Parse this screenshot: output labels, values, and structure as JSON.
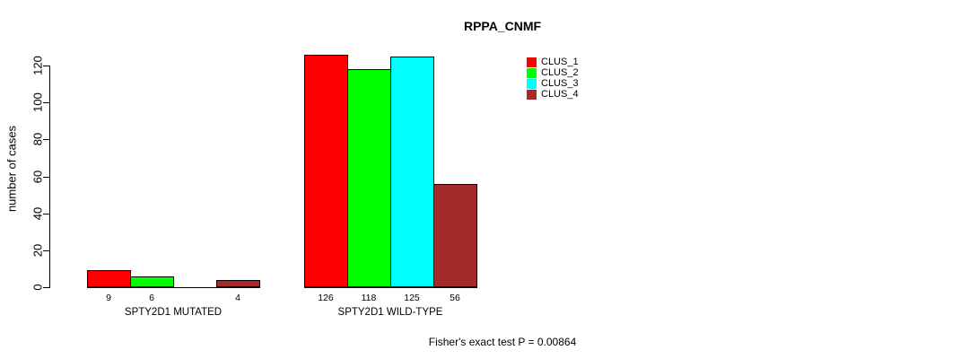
{
  "chart_data": {
    "type": "bar",
    "title": "RPPA_CNMF",
    "ylabel": "number of cases",
    "xlabel": "",
    "ylim": [
      0,
      120
    ],
    "yticks": [
      0,
      20,
      40,
      60,
      80,
      100,
      120
    ],
    "grid": false,
    "legend_position": "top-right",
    "categories": [
      "SPTY2D1 MUTATED",
      "SPTY2D1 WILD-TYPE"
    ],
    "series": [
      {
        "name": "CLUS_1",
        "color": "#ff0000",
        "values": [
          9,
          126
        ]
      },
      {
        "name": "CLUS_2",
        "color": "#00ff00",
        "values": [
          6,
          118
        ]
      },
      {
        "name": "CLUS_3",
        "color": "#00ffff",
        "values": [
          0,
          125
        ]
      },
      {
        "name": "CLUS_4",
        "color": "#a52a2a",
        "values": [
          4,
          56
        ]
      }
    ],
    "bar_value_labels": [
      [
        "9",
        "6",
        "",
        "4"
      ],
      [
        "126",
        "118",
        "125",
        "56"
      ]
    ]
  },
  "footer": {
    "note": "Fisher's exact test P = 0.00864"
  }
}
